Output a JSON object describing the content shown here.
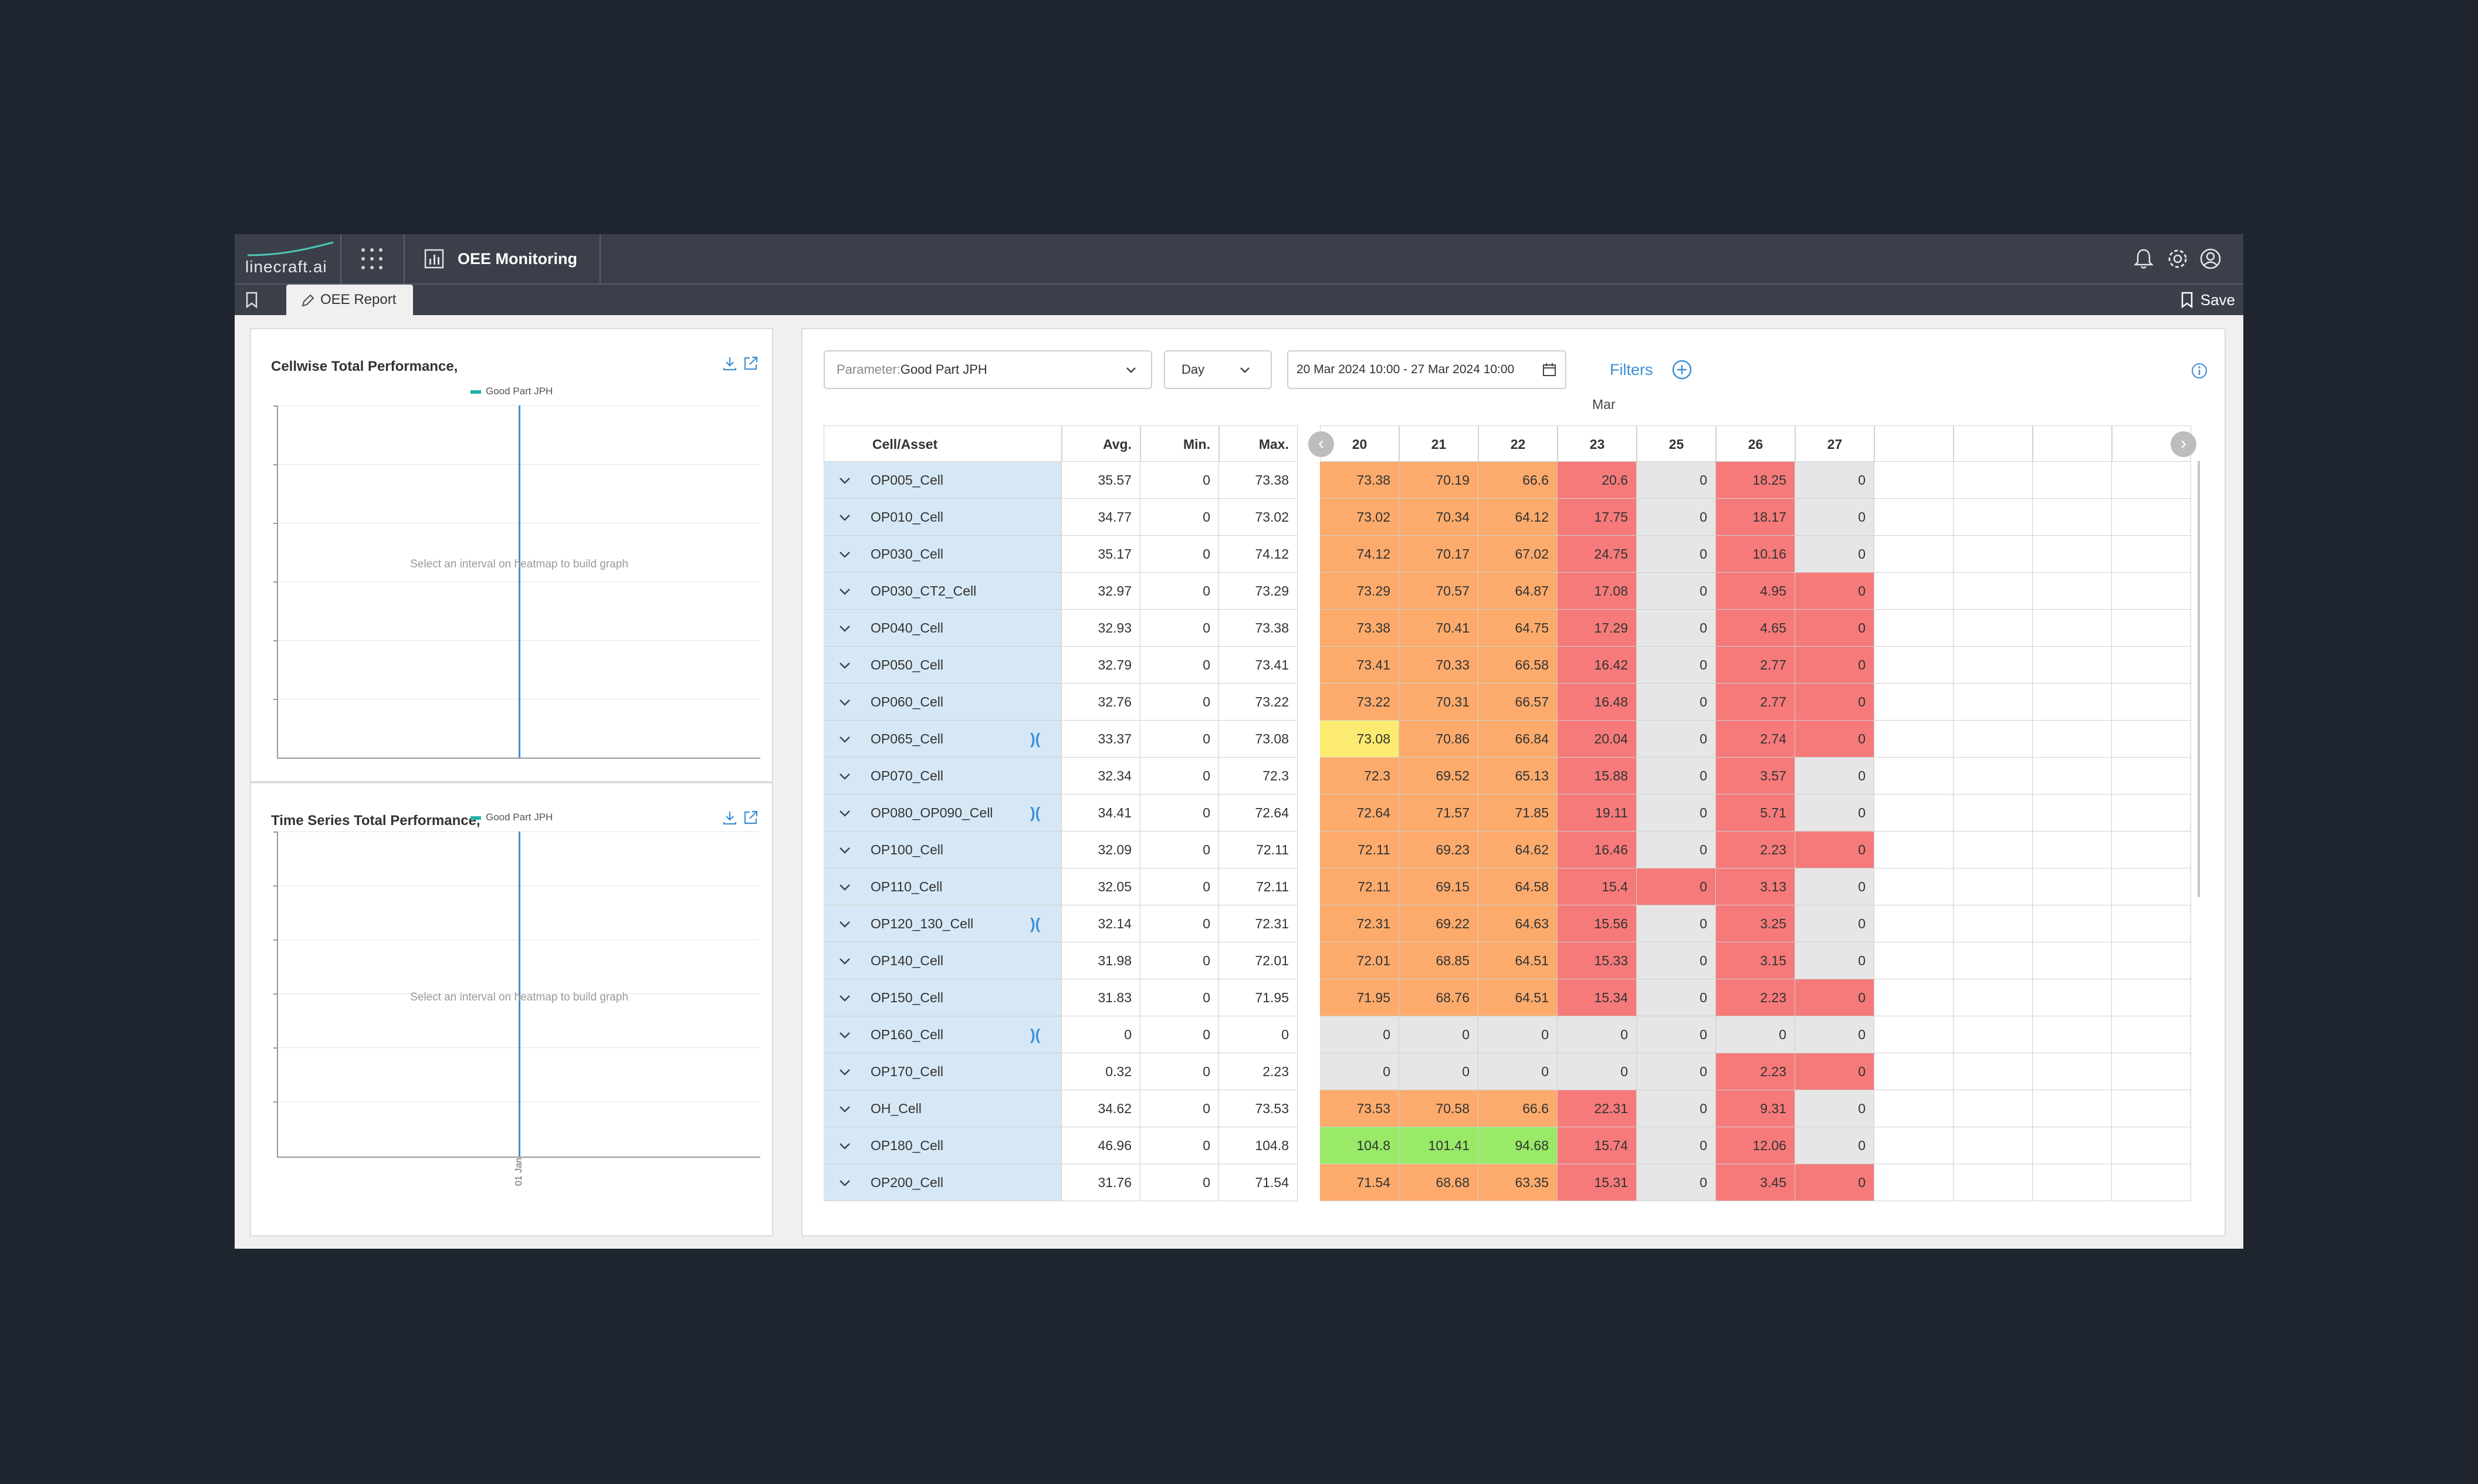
{
  "app": {
    "logo_text": "linecraft.ai",
    "module_title": "OEE Monitoring",
    "tab_label": "OEE Report",
    "save_label": "Save"
  },
  "left_panels": [
    {
      "title": "Cellwise Total Performance,",
      "legend": "Good Part JPH",
      "message": "Select an interval on heatmap to build graph",
      "x_tick": ""
    },
    {
      "title": "Time Series Total Performance,",
      "legend": "Good Part JPH",
      "message": "Select an interval on heatmap to build graph",
      "x_tick": "01 Jan"
    }
  ],
  "controls": {
    "parameter_label": "Parameter:",
    "parameter_value": "Good Part JPH",
    "granularity": "Day",
    "date_range": "20 Mar 2024 10:00 - 27 Mar 2024 10:00",
    "filters_label": "Filters"
  },
  "table": {
    "month": "Mar",
    "headers": {
      "name": "Cell/Asset",
      "avg": "Avg.",
      "min": "Min.",
      "max": "Max."
    },
    "days": [
      "20",
      "21",
      "22",
      "23",
      "25",
      "26",
      "27",
      "",
      "",
      "",
      ""
    ],
    "rows": [
      {
        "name": "OP005_Cell",
        "link": false,
        "avg": "35.57",
        "min": "0",
        "max": "73.38",
        "vals": [
          "73.38",
          "70.19",
          "66.6",
          "20.6",
          "0",
          "18.25",
          "0"
        ],
        "colors": [
          "o",
          "o",
          "o",
          "r",
          "g",
          "r",
          "g"
        ]
      },
      {
        "name": "OP010_Cell",
        "link": false,
        "avg": "34.77",
        "min": "0",
        "max": "73.02",
        "vals": [
          "73.02",
          "70.34",
          "64.12",
          "17.75",
          "0",
          "18.17",
          "0"
        ],
        "colors": [
          "o",
          "o",
          "o",
          "r",
          "g",
          "r",
          "g"
        ]
      },
      {
        "name": "OP030_Cell",
        "link": false,
        "avg": "35.17",
        "min": "0",
        "max": "74.12",
        "vals": [
          "74.12",
          "70.17",
          "67.02",
          "24.75",
          "0",
          "10.16",
          "0"
        ],
        "colors": [
          "o",
          "o",
          "o",
          "r",
          "g",
          "r",
          "g"
        ]
      },
      {
        "name": "OP030_CT2_Cell",
        "link": false,
        "avg": "32.97",
        "min": "0",
        "max": "73.29",
        "vals": [
          "73.29",
          "70.57",
          "64.87",
          "17.08",
          "0",
          "4.95",
          "0"
        ],
        "colors": [
          "o",
          "o",
          "o",
          "r",
          "g",
          "r",
          "r"
        ]
      },
      {
        "name": "OP040_Cell",
        "link": false,
        "avg": "32.93",
        "min": "0",
        "max": "73.38",
        "vals": [
          "73.38",
          "70.41",
          "64.75",
          "17.29",
          "0",
          "4.65",
          "0"
        ],
        "colors": [
          "o",
          "o",
          "o",
          "r",
          "g",
          "r",
          "r"
        ]
      },
      {
        "name": "OP050_Cell",
        "link": false,
        "avg": "32.79",
        "min": "0",
        "max": "73.41",
        "vals": [
          "73.41",
          "70.33",
          "66.58",
          "16.42",
          "0",
          "2.77",
          "0"
        ],
        "colors": [
          "o",
          "o",
          "o",
          "r",
          "g",
          "r",
          "r"
        ]
      },
      {
        "name": "OP060_Cell",
        "link": false,
        "avg": "32.76",
        "min": "0",
        "max": "73.22",
        "vals": [
          "73.22",
          "70.31",
          "66.57",
          "16.48",
          "0",
          "2.77",
          "0"
        ],
        "colors": [
          "o",
          "o",
          "o",
          "r",
          "g",
          "r",
          "r"
        ]
      },
      {
        "name": "OP065_Cell",
        "link": true,
        "avg": "33.37",
        "min": "0",
        "max": "73.08",
        "vals": [
          "73.08",
          "70.86",
          "66.84",
          "20.04",
          "0",
          "2.74",
          "0"
        ],
        "colors": [
          "y",
          "o",
          "o",
          "r",
          "g",
          "r",
          "r"
        ]
      },
      {
        "name": "OP070_Cell",
        "link": false,
        "avg": "32.34",
        "min": "0",
        "max": "72.3",
        "vals": [
          "72.3",
          "69.52",
          "65.13",
          "15.88",
          "0",
          "3.57",
          "0"
        ],
        "colors": [
          "o",
          "o",
          "o",
          "r",
          "g",
          "r",
          "g"
        ]
      },
      {
        "name": "OP080_OP090_Cell",
        "link": true,
        "avg": "34.41",
        "min": "0",
        "max": "72.64",
        "vals": [
          "72.64",
          "71.57",
          "71.85",
          "19.11",
          "0",
          "5.71",
          "0"
        ],
        "colors": [
          "o",
          "o",
          "o",
          "r",
          "g",
          "r",
          "g"
        ]
      },
      {
        "name": "OP100_Cell",
        "link": false,
        "avg": "32.09",
        "min": "0",
        "max": "72.11",
        "vals": [
          "72.11",
          "69.23",
          "64.62",
          "16.46",
          "0",
          "2.23",
          "0"
        ],
        "colors": [
          "o",
          "o",
          "o",
          "r",
          "g",
          "r",
          "r"
        ]
      },
      {
        "name": "OP110_Cell",
        "link": false,
        "avg": "32.05",
        "min": "0",
        "max": "72.11",
        "vals": [
          "72.11",
          "69.15",
          "64.58",
          "15.4",
          "0",
          "3.13",
          "0"
        ],
        "colors": [
          "o",
          "o",
          "o",
          "r",
          "r",
          "r",
          "g"
        ]
      },
      {
        "name": "OP120_130_Cell",
        "link": true,
        "avg": "32.14",
        "min": "0",
        "max": "72.31",
        "vals": [
          "72.31",
          "69.22",
          "64.63",
          "15.56",
          "0",
          "3.25",
          "0"
        ],
        "colors": [
          "o",
          "o",
          "o",
          "r",
          "g",
          "r",
          "g"
        ]
      },
      {
        "name": "OP140_Cell",
        "link": false,
        "avg": "31.98",
        "min": "0",
        "max": "72.01",
        "vals": [
          "72.01",
          "68.85",
          "64.51",
          "15.33",
          "0",
          "3.15",
          "0"
        ],
        "colors": [
          "o",
          "o",
          "o",
          "r",
          "g",
          "r",
          "g"
        ]
      },
      {
        "name": "OP150_Cell",
        "link": false,
        "avg": "31.83",
        "min": "0",
        "max": "71.95",
        "vals": [
          "71.95",
          "68.76",
          "64.51",
          "15.34",
          "0",
          "2.23",
          "0"
        ],
        "colors": [
          "o",
          "o",
          "o",
          "r",
          "g",
          "r",
          "r"
        ]
      },
      {
        "name": "OP160_Cell",
        "link": true,
        "avg": "0",
        "min": "0",
        "max": "0",
        "vals": [
          "0",
          "0",
          "0",
          "0",
          "0",
          "0",
          "0"
        ],
        "colors": [
          "g",
          "g",
          "g",
          "g",
          "g",
          "g",
          "g"
        ]
      },
      {
        "name": "OP170_Cell",
        "link": false,
        "avg": "0.32",
        "min": "0",
        "max": "2.23",
        "vals": [
          "0",
          "0",
          "0",
          "0",
          "0",
          "2.23",
          "0"
        ],
        "colors": [
          "g",
          "g",
          "g",
          "g",
          "g",
          "r",
          "r"
        ]
      },
      {
        "name": "OH_Cell",
        "link": false,
        "avg": "34.62",
        "min": "0",
        "max": "73.53",
        "vals": [
          "73.53",
          "70.58",
          "66.6",
          "22.31",
          "0",
          "9.31",
          "0"
        ],
        "colors": [
          "o",
          "o",
          "o",
          "r",
          "g",
          "r",
          "g"
        ]
      },
      {
        "name": "OP180_Cell",
        "link": false,
        "avg": "46.96",
        "min": "0",
        "max": "104.8",
        "vals": [
          "104.8",
          "101.41",
          "94.68",
          "15.74",
          "0",
          "12.06",
          "0"
        ],
        "colors": [
          "G",
          "G",
          "G",
          "r",
          "g",
          "r",
          "g"
        ]
      },
      {
        "name": "OP200_Cell",
        "link": false,
        "avg": "31.76",
        "min": "0",
        "max": "71.54",
        "vals": [
          "71.54",
          "68.68",
          "63.35",
          "15.31",
          "0",
          "3.45",
          "0"
        ],
        "colors": [
          "o",
          "o",
          "o",
          "r",
          "g",
          "r",
          "r"
        ]
      }
    ]
  },
  "colors": {
    "o": "#fcab6c",
    "r": "#f67a7a",
    "g": "#e6e6e6",
    "G": "#98ea67",
    "y": "#fbec71",
    "accent": "#3d8fd6",
    "name_bg": "#d6e8f5"
  }
}
